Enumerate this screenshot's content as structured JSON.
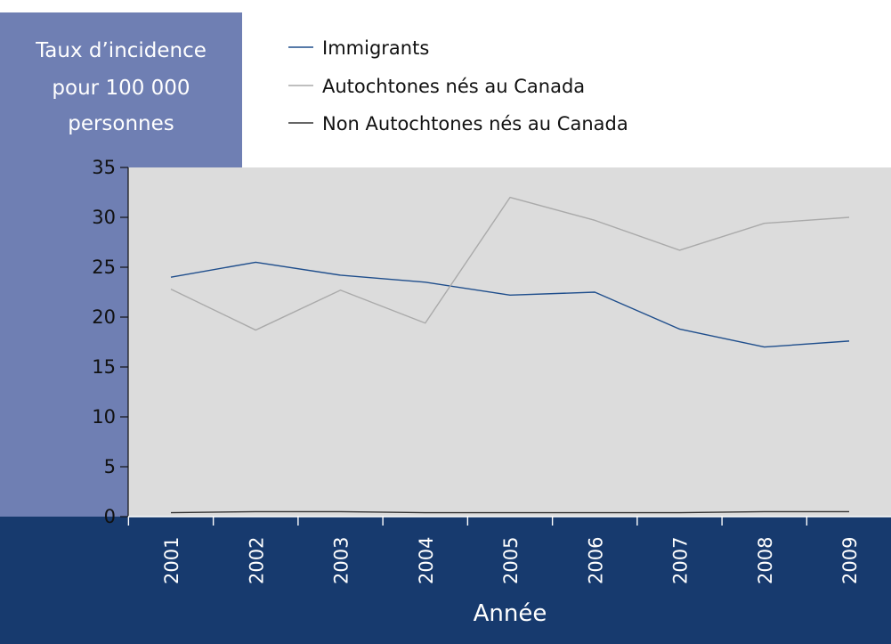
{
  "chart_data": {
    "type": "line",
    "title": "",
    "xlabel": "Année",
    "ylabel_lines": [
      "Taux d’incidence",
      "pour 100 000",
      "personnes"
    ],
    "categories": [
      "2001",
      "2002",
      "2003",
      "2004",
      "2005",
      "2006",
      "2007",
      "2008",
      "2009"
    ],
    "ylim": [
      0,
      35
    ],
    "yticks": [
      "0",
      "5",
      "10",
      "15",
      "20",
      "25",
      "30",
      "35"
    ],
    "grid": false,
    "legend_position": "top",
    "series": [
      {
        "name": "Immigrants",
        "color": "#1f4e8c",
        "values": [
          24.0,
          25.5,
          24.2,
          23.5,
          22.2,
          22.5,
          18.8,
          17.0,
          17.6
        ]
      },
      {
        "name": "Autochtones nés au Canada",
        "color": "#aaaaaa",
        "values": [
          22.8,
          18.7,
          22.7,
          19.4,
          32.0,
          29.7,
          26.7,
          29.4,
          30.0
        ]
      },
      {
        "name": "Non Autochtones nés au Canada",
        "color": "#333333",
        "values": [
          0.4,
          0.5,
          0.5,
          0.4,
          0.4,
          0.4,
          0.4,
          0.5,
          0.5
        ]
      }
    ],
    "colors": {
      "plot_background": "#dcdcdc",
      "ylabel_panel": "#6f7fb3",
      "xlabel_panel": "#173a6e"
    }
  }
}
